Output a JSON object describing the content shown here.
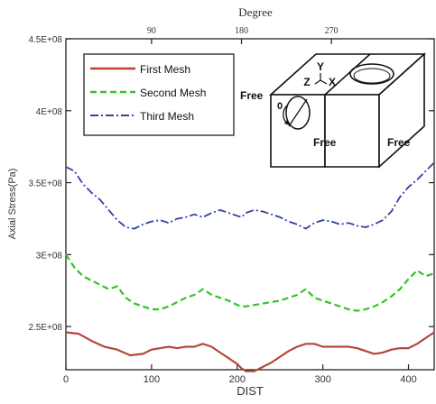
{
  "chart_data": {
    "type": "line",
    "xlabel": "DIST",
    "ylabel": "Axial Stress(Pa)",
    "top_axis_label": "Degree",
    "xlim": [
      0,
      430
    ],
    "ylim": [
      220000000,
      450000000
    ],
    "x_ticks": [
      "0",
      "100",
      "200",
      "300",
      "400"
    ],
    "x_tick_values": [
      0,
      100,
      200,
      300,
      400
    ],
    "y_ticks": [
      "2.5E+08",
      "3E+08",
      "3.5E+08",
      "4E+08",
      "4.5E+08"
    ],
    "y_tick_values": [
      250000000,
      300000000,
      350000000,
      400000000,
      450000000
    ],
    "top_ticks": [
      "90",
      "180",
      "270"
    ],
    "top_tick_dist": [
      100,
      205,
      310
    ],
    "grid": false,
    "legend_position": "top-left",
    "series": [
      {
        "name": "First Mesh",
        "color": "#b5473a",
        "dash": "solid",
        "x": [
          0,
          15,
          30,
          45,
          60,
          75,
          90,
          100,
          110,
          120,
          130,
          140,
          150,
          160,
          170,
          180,
          190,
          200,
          205,
          210,
          220,
          230,
          240,
          250,
          260,
          270,
          280,
          290,
          300,
          310,
          320,
          330,
          340,
          350,
          360,
          370,
          380,
          390,
          400,
          410,
          420,
          430
        ],
        "values": [
          246000000,
          245000000,
          240000000,
          236000000,
          234000000,
          230000000,
          231000000,
          234000000,
          235000000,
          236000000,
          235000000,
          236000000,
          236000000,
          238000000,
          236000000,
          232000000,
          228000000,
          224000000,
          221000000,
          219000000,
          219000000,
          222000000,
          225000000,
          229000000,
          233000000,
          236000000,
          238000000,
          238000000,
          236000000,
          236000000,
          236000000,
          236000000,
          235000000,
          233000000,
          231000000,
          232000000,
          234000000,
          235000000,
          235000000,
          238000000,
          242000000,
          246000000
        ]
      },
      {
        "name": "Second Mesh",
        "color": "#33c424",
        "dash": "dashed",
        "x": [
          0,
          10,
          20,
          30,
          40,
          50,
          60,
          70,
          80,
          90,
          100,
          110,
          120,
          130,
          140,
          150,
          160,
          170,
          180,
          190,
          200,
          205,
          210,
          220,
          230,
          240,
          250,
          260,
          270,
          280,
          290,
          300,
          310,
          320,
          330,
          340,
          350,
          360,
          370,
          380,
          390,
          400,
          410,
          420,
          430
        ],
        "values": [
          300000000,
          291000000,
          285000000,
          282000000,
          279000000,
          276000000,
          278000000,
          270000000,
          266000000,
          264000000,
          262000000,
          262000000,
          264000000,
          267000000,
          270000000,
          272000000,
          276000000,
          272000000,
          270000000,
          268000000,
          265000000,
          264000000,
          264000000,
          265000000,
          266000000,
          267000000,
          268000000,
          270000000,
          272000000,
          276000000,
          270000000,
          268000000,
          266000000,
          264000000,
          262000000,
          261000000,
          262000000,
          264000000,
          267000000,
          271000000,
          276000000,
          283000000,
          289000000,
          285000000,
          287000000
        ]
      },
      {
        "name": "Third Mesh",
        "color": "#3341a3",
        "dash": "dash-dot",
        "x": [
          0,
          10,
          20,
          30,
          40,
          50,
          60,
          70,
          80,
          90,
          100,
          110,
          120,
          130,
          140,
          150,
          160,
          170,
          180,
          190,
          200,
          205,
          210,
          220,
          230,
          240,
          250,
          260,
          270,
          280,
          290,
          300,
          310,
          320,
          330,
          340,
          350,
          360,
          370,
          380,
          390,
          400,
          410,
          420,
          430
        ],
        "values": [
          361000000,
          358000000,
          349000000,
          343000000,
          338000000,
          331000000,
          324000000,
          319000000,
          318000000,
          321000000,
          323000000,
          324000000,
          322000000,
          325000000,
          326000000,
          328000000,
          326000000,
          329000000,
          331000000,
          329000000,
          327000000,
          326000000,
          329000000,
          331000000,
          330000000,
          328000000,
          326000000,
          323000000,
          321000000,
          318000000,
          322000000,
          324000000,
          323000000,
          321000000,
          322000000,
          320000000,
          319000000,
          321000000,
          324000000,
          330000000,
          340000000,
          347000000,
          352000000,
          358000000,
          364000000
        ]
      }
    ]
  },
  "inset": {
    "axis_y": "Y",
    "axis_z": "Z",
    "axis_x": "X",
    "origin_label": "0",
    "free_left": "Free",
    "free_middle": "Free",
    "free_right": "Free"
  }
}
